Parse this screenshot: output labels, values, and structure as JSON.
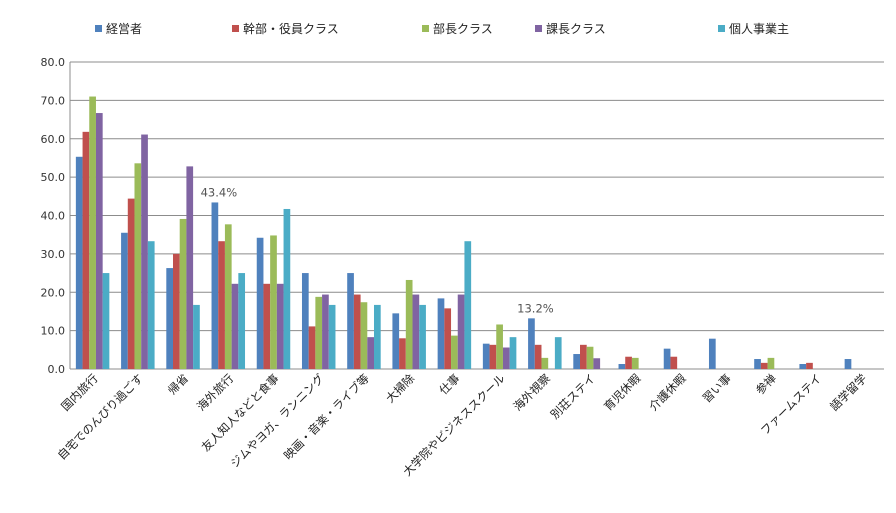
{
  "chart_data": {
    "type": "bar",
    "title": "",
    "xlabel": "",
    "ylabel": "",
    "ylim": [
      0,
      80
    ],
    "yticks": [
      "0.0",
      "10.0",
      "20.0",
      "30.0",
      "40.0",
      "50.0",
      "60.0",
      "70.0",
      "80.0"
    ],
    "grid": true,
    "legend_position": "top",
    "categories": [
      "国内旅行",
      "自宅でのんびり過ごす",
      "帰省",
      "海外旅行",
      "友人知人などと食事",
      "ジムやヨガ、ランニング",
      "映画・音楽・ライブ等",
      "大掃除",
      "仕事",
      "大学院やビジネススクール",
      "海外視察",
      "別荘ステイ",
      "育児休暇",
      "介護休暇",
      "習い事",
      "参禅",
      "ファームステイ",
      "語学留学"
    ],
    "series": [
      {
        "name": "経営者",
        "color": "#4F81BD",
        "values": [
          55.3,
          35.5,
          26.3,
          43.4,
          34.2,
          25.0,
          25.0,
          14.5,
          18.4,
          6.6,
          13.2,
          3.9,
          1.3,
          5.3,
          7.9,
          2.6,
          1.3,
          2.6
        ]
      },
      {
        "name": "幹部・役員クラス",
        "color": "#C0504D",
        "values": [
          61.8,
          44.4,
          30.0,
          33.3,
          22.2,
          11.1,
          19.4,
          8.0,
          15.8,
          6.3,
          6.3,
          6.3,
          3.2,
          3.2,
          0,
          1.6,
          1.6,
          0
        ]
      },
      {
        "name": "部長クラス",
        "color": "#9BBB59",
        "values": [
          71.0,
          53.6,
          39.1,
          37.7,
          34.8,
          18.8,
          17.4,
          23.2,
          8.7,
          11.6,
          2.9,
          5.8,
          2.9,
          0,
          0,
          2.9,
          0,
          0
        ]
      },
      {
        "name": "課長クラス",
        "color": "#8064A2",
        "values": [
          66.7,
          61.1,
          52.8,
          22.2,
          22.2,
          19.4,
          8.3,
          19.4,
          19.4,
          5.6,
          0,
          2.8,
          0,
          0,
          0,
          0,
          0,
          0
        ]
      },
      {
        "name": "個人事業主",
        "color": "#4BACC6",
        "values": [
          25.0,
          33.3,
          16.7,
          25.0,
          41.7,
          16.7,
          16.7,
          16.7,
          33.3,
          8.3,
          8.3,
          0,
          0,
          0,
          0,
          0,
          0,
          0
        ]
      }
    ],
    "annotations": [
      {
        "text": "43.4%",
        "category": "海外旅行",
        "series": "経営者",
        "value": 43.4
      },
      {
        "text": "13.2%",
        "category": "海外視察",
        "series": "経営者",
        "value": 13.2
      }
    ]
  }
}
